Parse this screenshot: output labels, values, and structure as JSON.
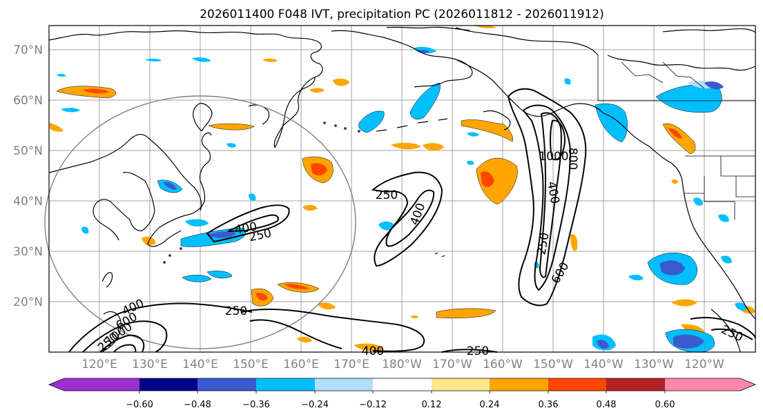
{
  "title": "2026011400 F048 IVT, precipitation PC (2026011812 - 2026011912)",
  "lat_labels": [
    "70°N",
    "60°N",
    "50°N",
    "40°N",
    "30°N",
    "20°N"
  ],
  "lon_labels": [
    "120°E",
    "130°E",
    "140°E",
    "150°E",
    "160°E",
    "170°E",
    "180°W",
    "170°W",
    "160°W",
    "150°W",
    "140°W",
    "130°W",
    "120°W"
  ],
  "colorbar": {
    "ticks": [
      "−0.60",
      "−0.48",
      "−0.36",
      "−0.24",
      "−0.12",
      "0.12",
      "0.24",
      "0.36",
      "0.48",
      "0.60"
    ],
    "colors": [
      "#9b30d0",
      "#00008b",
      "#3a5bcf",
      "#00bfff",
      "#afe0fa",
      "#ffffff",
      "#ffe98a",
      "#ffa500",
      "#ff4500",
      "#b22222",
      "#ff88aa"
    ]
  },
  "ivt_labels": [
    "250",
    "400",
    "250",
    "400",
    "1000",
    "800",
    "400",
    "250",
    "600",
    "250",
    "400",
    "600",
    "1000",
    "250",
    "400",
    "250",
    "250"
  ]
}
